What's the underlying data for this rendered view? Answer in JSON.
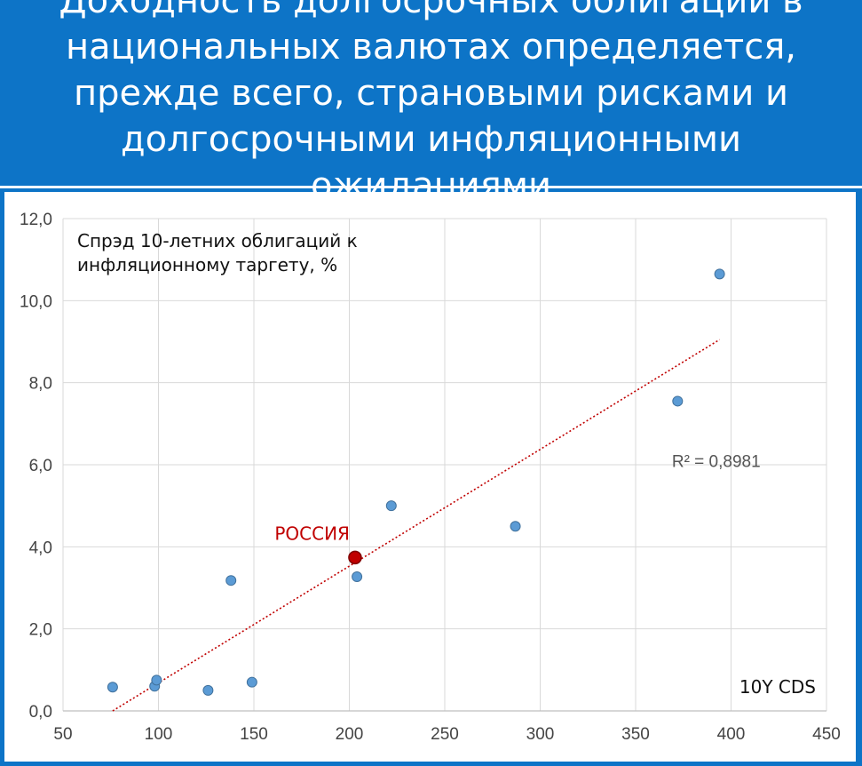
{
  "header": {
    "title": "Доходность долгосрочных облигаций в национальных валютах определяется, прежде всего, страновыми рисками и долгосрочными инфляционными ожиданиями"
  },
  "chart_data": {
    "type": "scatter",
    "title": "",
    "ylabel": "Спрэд 10-летних облигаций к инфляционному таргету, %",
    "ylabel_lines": [
      "Спрэд 10-летних облигаций к",
      "инфляционному таргету, %"
    ],
    "xlabel": "10Y CDS",
    "xlim": [
      50,
      450
    ],
    "ylim": [
      0,
      12
    ],
    "x_ticks": [
      50,
      100,
      150,
      200,
      250,
      300,
      350,
      400,
      450
    ],
    "x_tick_labels": [
      "50",
      "100",
      "150",
      "200",
      "250",
      "300",
      "350",
      "400",
      "450"
    ],
    "y_ticks": [
      0,
      2,
      4,
      6,
      8,
      10,
      12
    ],
    "y_tick_labels": [
      "0,0",
      "2,0",
      "4,0",
      "6,0",
      "8,0",
      "10,0",
      "12,0"
    ],
    "grid": true,
    "points": [
      {
        "x": 76,
        "y": 0.58
      },
      {
        "x": 98,
        "y": 0.6
      },
      {
        "x": 99,
        "y": 0.75
      },
      {
        "x": 126,
        "y": 0.5
      },
      {
        "x": 138,
        "y": 3.18
      },
      {
        "x": 149,
        "y": 0.7
      },
      {
        "x": 204,
        "y": 3.27
      },
      {
        "x": 222,
        "y": 5.0
      },
      {
        "x": 287,
        "y": 4.5
      },
      {
        "x": 372,
        "y": 7.55
      },
      {
        "x": 394,
        "y": 10.65
      }
    ],
    "highlight": {
      "x": 203,
      "y": 3.74,
      "label": "РОССИЯ",
      "color": "#c00000"
    },
    "trendline": {
      "x": [
        76,
        394
      ],
      "y": [
        0.0,
        9.05
      ],
      "r2_label": "R² = 0,8981",
      "color": "#c00000"
    },
    "colors": {
      "points": "#5b9bd5",
      "point_stroke": "#41719c",
      "grid": "#d9d9d9"
    }
  }
}
